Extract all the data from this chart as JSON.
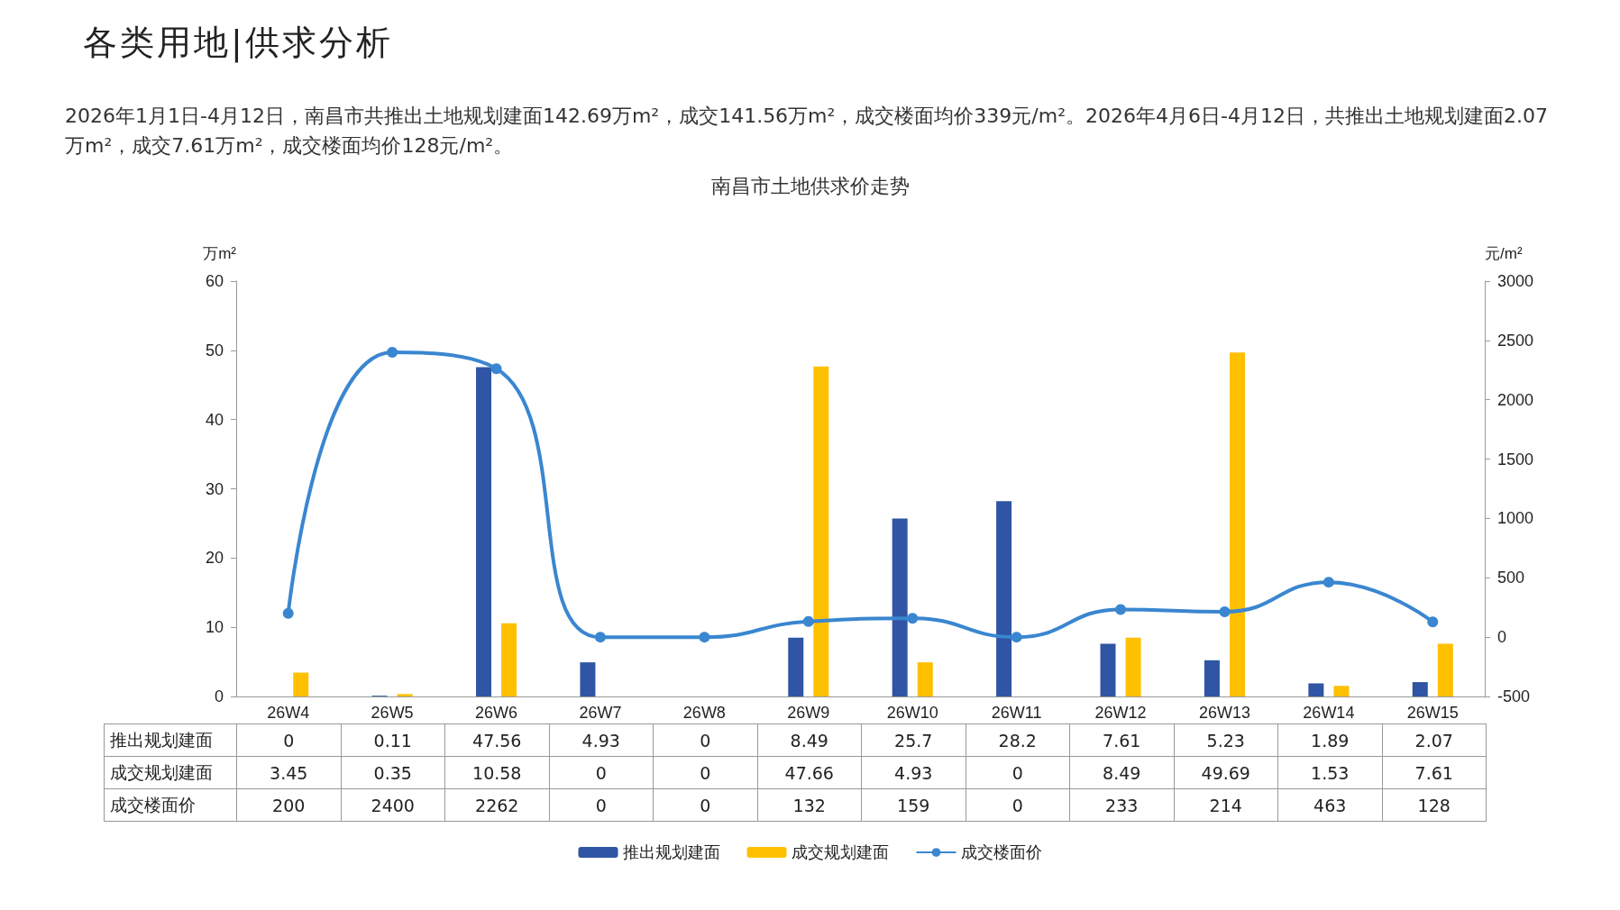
{
  "chart_data": {
    "type": "bar",
    "title": "南昌市土地供求价走势",
    "annotations": [
      "各类用地|供求分析",
      "2026年1月1日-4月12日，南昌市共推出土地规划建面142.69万m²，成交141.56万m²，成交楼面均价339元/m²。2026年4月6日-4月12日，共推出土地规划建面2.07万m²，成交7.61万m²，成交楼面均价128元/m²。"
    ],
    "ylabel": "万m²",
    "y2label": "元/m²",
    "categories": [
      "26W4",
      "26W5",
      "26W6",
      "26W7",
      "26W8",
      "26W9",
      "26W10",
      "26W11",
      "26W12",
      "26W13",
      "26W14",
      "26W15"
    ],
    "series": [
      {
        "name": "推出规划建面",
        "color": "#2f55a4",
        "values": [
          0,
          0.11,
          47.56,
          4.93,
          0,
          8.49,
          25.7,
          28.2,
          7.61,
          5.23,
          1.89,
          2.07
        ]
      },
      {
        "name": "成交规划建面",
        "color": "#ffc000",
        "values": [
          3.45,
          0.35,
          10.58,
          0,
          0,
          47.66,
          4.93,
          0,
          8.49,
          49.69,
          1.53,
          7.61
        ]
      },
      {
        "name": "成交楼面价",
        "type": "line",
        "axis": "y2",
        "color": "#3a86d0",
        "marker": "circle",
        "values": [
          200,
          2400,
          2262,
          0,
          0,
          132,
          159,
          0,
          233,
          214,
          463,
          128
        ]
      }
    ],
    "ylim": [
      0,
      60
    ],
    "yticks": [
      0,
      10,
      20,
      30,
      40,
      50,
      60
    ],
    "y2lim": [
      -500,
      3000
    ],
    "y2ticks": [
      -500,
      0,
      500,
      1000,
      1500,
      2000,
      2500,
      3000
    ],
    "grid": false,
    "legend": "bottom",
    "data_labels": true
  }
}
